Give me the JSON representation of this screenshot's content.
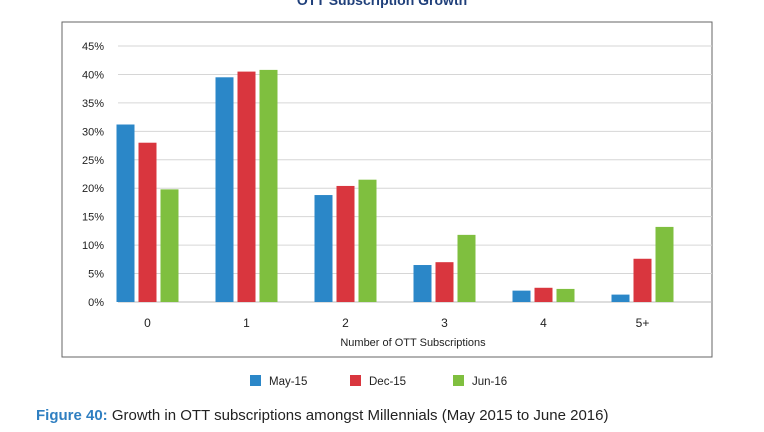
{
  "colors": {
    "accent": "#2f7fc1",
    "frame": "#666666",
    "grid": "#d6d6d6"
  },
  "chart_data": {
    "type": "bar",
    "title": "OTT Subscription Growth",
    "xlabel": "Number of OTT Subscriptions",
    "ylabel": "",
    "ylim": [
      0,
      45
    ],
    "yticks": [
      "0%",
      "5%",
      "10%",
      "15%",
      "20%",
      "25%",
      "30%",
      "35%",
      "40%",
      "45%"
    ],
    "categories": [
      "0",
      "1",
      "2",
      "3",
      "4",
      "5+"
    ],
    "grid": true,
    "legend_position": "bottom",
    "series": [
      {
        "name": "May-15",
        "color": "#2b87c8",
        "values": [
          31.2,
          39.5,
          18.8,
          6.5,
          2.0,
          1.3
        ]
      },
      {
        "name": "Dec-15",
        "color": "#d9363e",
        "values": [
          28.0,
          40.5,
          20.4,
          7.0,
          2.5,
          7.6
        ]
      },
      {
        "name": "Jun-16",
        "color": "#7fbf3f",
        "values": [
          19.8,
          40.8,
          21.5,
          11.8,
          2.3,
          13.2
        ]
      }
    ]
  },
  "caption": {
    "label": "Figure 40:",
    "text": "Growth in OTT subscriptions amongst Millennials (May 2015 to June 2016)"
  }
}
